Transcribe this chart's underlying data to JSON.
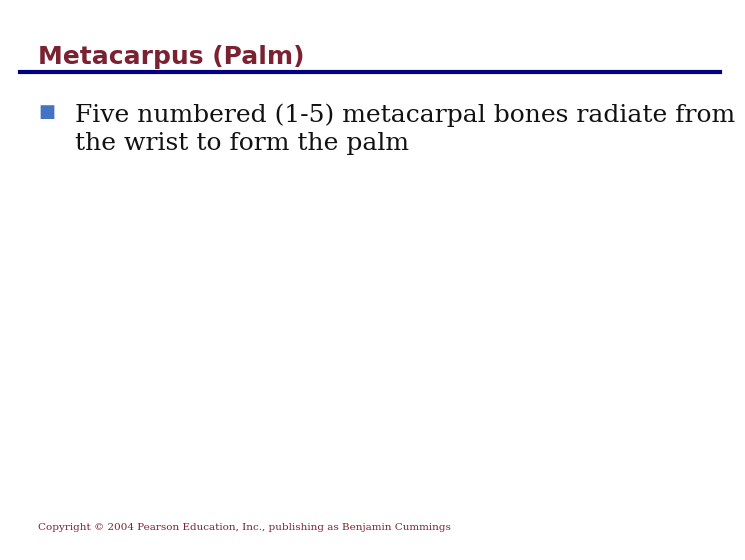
{
  "title": "Metacarpus (Palm)",
  "title_color": "#7B2232",
  "title_fontsize": 18,
  "title_bold": true,
  "divider_color": "#000080",
  "divider_linewidth": 3,
  "bullet_color": "#4472C4",
  "bullet_char": "■",
  "bullet_size": 13,
  "body_line1": "Five numbered (1-5) metacarpal bones radiate from",
  "body_line2": "the wrist to form the palm",
  "body_color": "#111111",
  "body_fontsize": 18,
  "copyright_text": "Copyright © 2004 Pearson Education, Inc., publishing as Benjamin Cummings",
  "copyright_color": "#7B2232",
  "copyright_fontsize": 7.5,
  "background_color": "#ffffff"
}
